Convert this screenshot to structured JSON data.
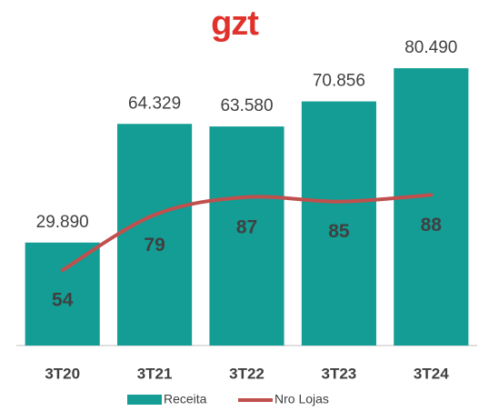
{
  "logo": "gzt",
  "chart_data": {
    "type": "bar",
    "categories": [
      "3T20",
      "3T21",
      "3T22",
      "3T23",
      "3T24"
    ],
    "series": [
      {
        "name": "Receita",
        "type": "bar",
        "color": "#139d95",
        "values": [
          29890,
          64329,
          63580,
          70856,
          80490
        ],
        "value_labels": [
          "29.890",
          "64.329",
          "63.580",
          "70.856",
          "80.490"
        ]
      },
      {
        "name": "Nro Lojas",
        "type": "line",
        "axis": "y2",
        "color": "#c0504d",
        "values": [
          54,
          79,
          87,
          85,
          88
        ]
      }
    ],
    "ylim": [
      0,
      90000
    ],
    "y2lim": [
      20,
      160
    ],
    "legend": "bottom"
  }
}
